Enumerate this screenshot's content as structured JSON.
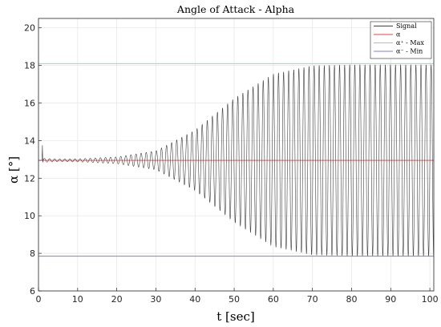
{
  "chart_data": {
    "type": "line",
    "title": "Angle of Attack - Alpha",
    "xlabel": "t [sec]",
    "ylabel": "α  [°]",
    "xlim": [
      0,
      101
    ],
    "ylim": [
      6,
      20.5
    ],
    "xticks": [
      "0",
      "10",
      "20",
      "30",
      "40",
      "50",
      "60",
      "70",
      "80",
      "90",
      "100"
    ],
    "yticks": [
      "6",
      "8",
      "10",
      "12",
      "14",
      "16",
      "18",
      "20"
    ],
    "grid": true,
    "legend_position": "top-right",
    "legend": [
      "Signal",
      "α",
      "α⁺ - Max",
      "α⁻ - Min"
    ],
    "series": [
      {
        "name": "Signal",
        "color": "#404040",
        "description_points": {
          "x": [
            0,
            1,
            1.3,
            5,
            10,
            20,
            30,
            40,
            50,
            60,
            70,
            80,
            90,
            101
          ],
          "amplitude": [
            0,
            0.8,
            0.1,
            0.07,
            0.08,
            0.18,
            0.5,
            1.6,
            3.3,
            4.6,
            5.05,
            5.1,
            5.1,
            5.1
          ]
        },
        "center": 12.95,
        "period_sec": 1.3
      },
      {
        "name": "α",
        "color": "#e8434a",
        "value": 12.95
      },
      {
        "name": "α⁺ - Max",
        "color": "#7fd6c0",
        "value": 18.1
      },
      {
        "name": "α⁻ - Min",
        "color": "#7e7ee6",
        "value": 7.85
      }
    ]
  }
}
